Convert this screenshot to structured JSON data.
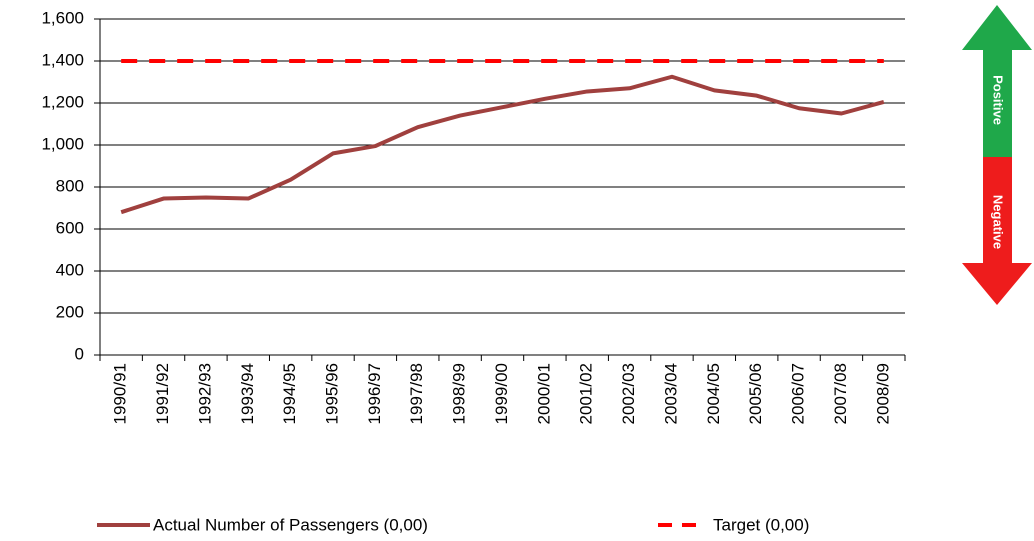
{
  "chart_data": {
    "type": "line",
    "categories": [
      "1990/91",
      "1991/92",
      "1992/93",
      "1993/94",
      "1994/95",
      "1995/96",
      "1996/97",
      "1997/98",
      "1998/99",
      "1999/00",
      "2000/01",
      "2001/02",
      "2002/03",
      "2003/04",
      "2004/05",
      "2005/06",
      "2006/07",
      "2007/08",
      "2008/09"
    ],
    "series": [
      {
        "name": "Actual Number of Passengers (0,00)",
        "color": "#a0403e",
        "style": "solid",
        "values": [
          680,
          745,
          750,
          745,
          835,
          960,
          995,
          1085,
          1140,
          1180,
          1220,
          1255,
          1270,
          1325,
          1260,
          1235,
          1175,
          1150,
          1205
        ]
      },
      {
        "name": "Target (0,00)",
        "color": "#ff0000",
        "style": "dashed",
        "values": [
          1400,
          1400,
          1400,
          1400,
          1400,
          1400,
          1400,
          1400,
          1400,
          1400,
          1400,
          1400,
          1400,
          1400,
          1400,
          1400,
          1400,
          1400,
          1400
        ]
      }
    ],
    "ylim": [
      0,
      1600
    ],
    "yticks": [
      0,
      200,
      400,
      600,
      800,
      {
        "value": 1000,
        "label": "1,000"
      },
      {
        "value": 1200,
        "label": "1,200"
      },
      {
        "value": 1400,
        "label": "1,400"
      },
      {
        "value": 1600,
        "label": "1,600"
      }
    ],
    "grid": true,
    "legend": "bottom",
    "annotations": [
      "Positive",
      "Negative"
    ]
  }
}
